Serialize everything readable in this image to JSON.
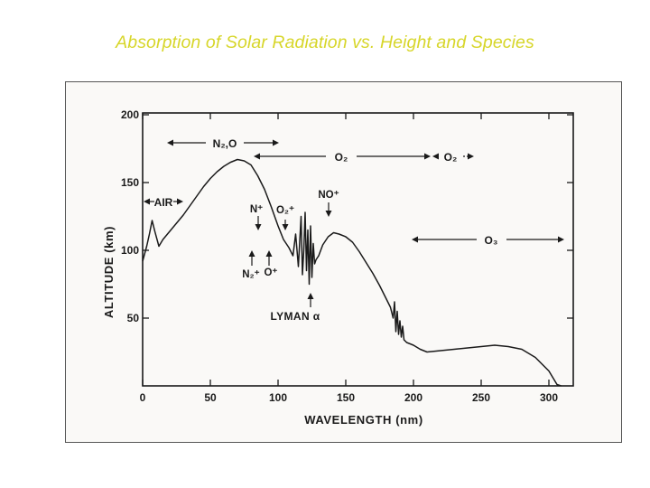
{
  "slide": {
    "title": "Absorption of Solar Radiation vs. Height and Species"
  },
  "colors": {
    "title": "#d7d62a",
    "ink": "#1a1a1a",
    "figure_background": "#faf9f7"
  },
  "chart_data": {
    "type": "line",
    "title": "",
    "xlabel": "WAVELENGTH (nm)",
    "ylabel": "ALTITUDE (km)",
    "xlim": [
      0,
      320
    ],
    "ylim": [
      0,
      200
    ],
    "xticks": [
      0,
      50,
      100,
      150,
      200,
      250,
      300
    ],
    "yticks": [
      50,
      100,
      150,
      200
    ],
    "xtick_labels": [
      "0",
      "50",
      "100",
      "150",
      "200",
      "250",
      "300"
    ],
    "ytick_labels": [
      "50",
      "100",
      "150",
      "200"
    ],
    "grid": false,
    "series": [
      {
        "values_x": [
          0,
          3,
          5,
          7,
          9,
          12,
          15,
          20,
          25,
          30,
          35,
          40,
          45,
          50,
          55,
          60,
          65,
          70,
          75,
          80,
          85,
          90,
          95,
          100,
          104,
          108,
          111,
          113,
          115,
          117,
          118,
          119,
          120,
          121,
          122,
          123,
          124,
          125,
          126,
          127,
          128,
          130,
          133,
          137,
          141,
          145,
          150,
          155,
          160,
          165,
          170,
          175,
          180,
          183,
          185,
          186,
          187,
          188,
          189,
          190,
          191,
          192,
          193,
          195,
          200,
          205,
          210,
          220,
          230,
          240,
          250,
          260,
          270,
          280,
          290,
          295,
          300,
          303,
          306,
          309
        ],
        "values_y": [
          92,
          103,
          112,
          122,
          114,
          103,
          108,
          114,
          120,
          126,
          133,
          140,
          147,
          153,
          158,
          162,
          165,
          167,
          166,
          163,
          155,
          145,
          132,
          118,
          108,
          102,
          96,
          112,
          88,
          125,
          82,
          100,
          128,
          85,
          115,
          75,
          118,
          80,
          105,
          90,
          93,
          96,
          104,
          110,
          113,
          112,
          110,
          106,
          99,
          91,
          83,
          74,
          64,
          58,
          50,
          62,
          40,
          55,
          38,
          48,
          36,
          44,
          34,
          32,
          30,
          27,
          25,
          26,
          27,
          28,
          29,
          30,
          29,
          27,
          21,
          16,
          11,
          6,
          1,
          0
        ]
      }
    ],
    "annotations": {
      "air": "AIR",
      "n2_o": "N₂,O",
      "o2": "O₂",
      "o2_dashed": "O₂",
      "n_plus": "N⁺",
      "o2_plus": "O₂⁺",
      "no_plus": "NO⁺",
      "n2_plus": "N₂⁺",
      "o_plus": "O⁺",
      "o3": "O₃",
      "lyman_alpha": "LYMAN α"
    }
  }
}
